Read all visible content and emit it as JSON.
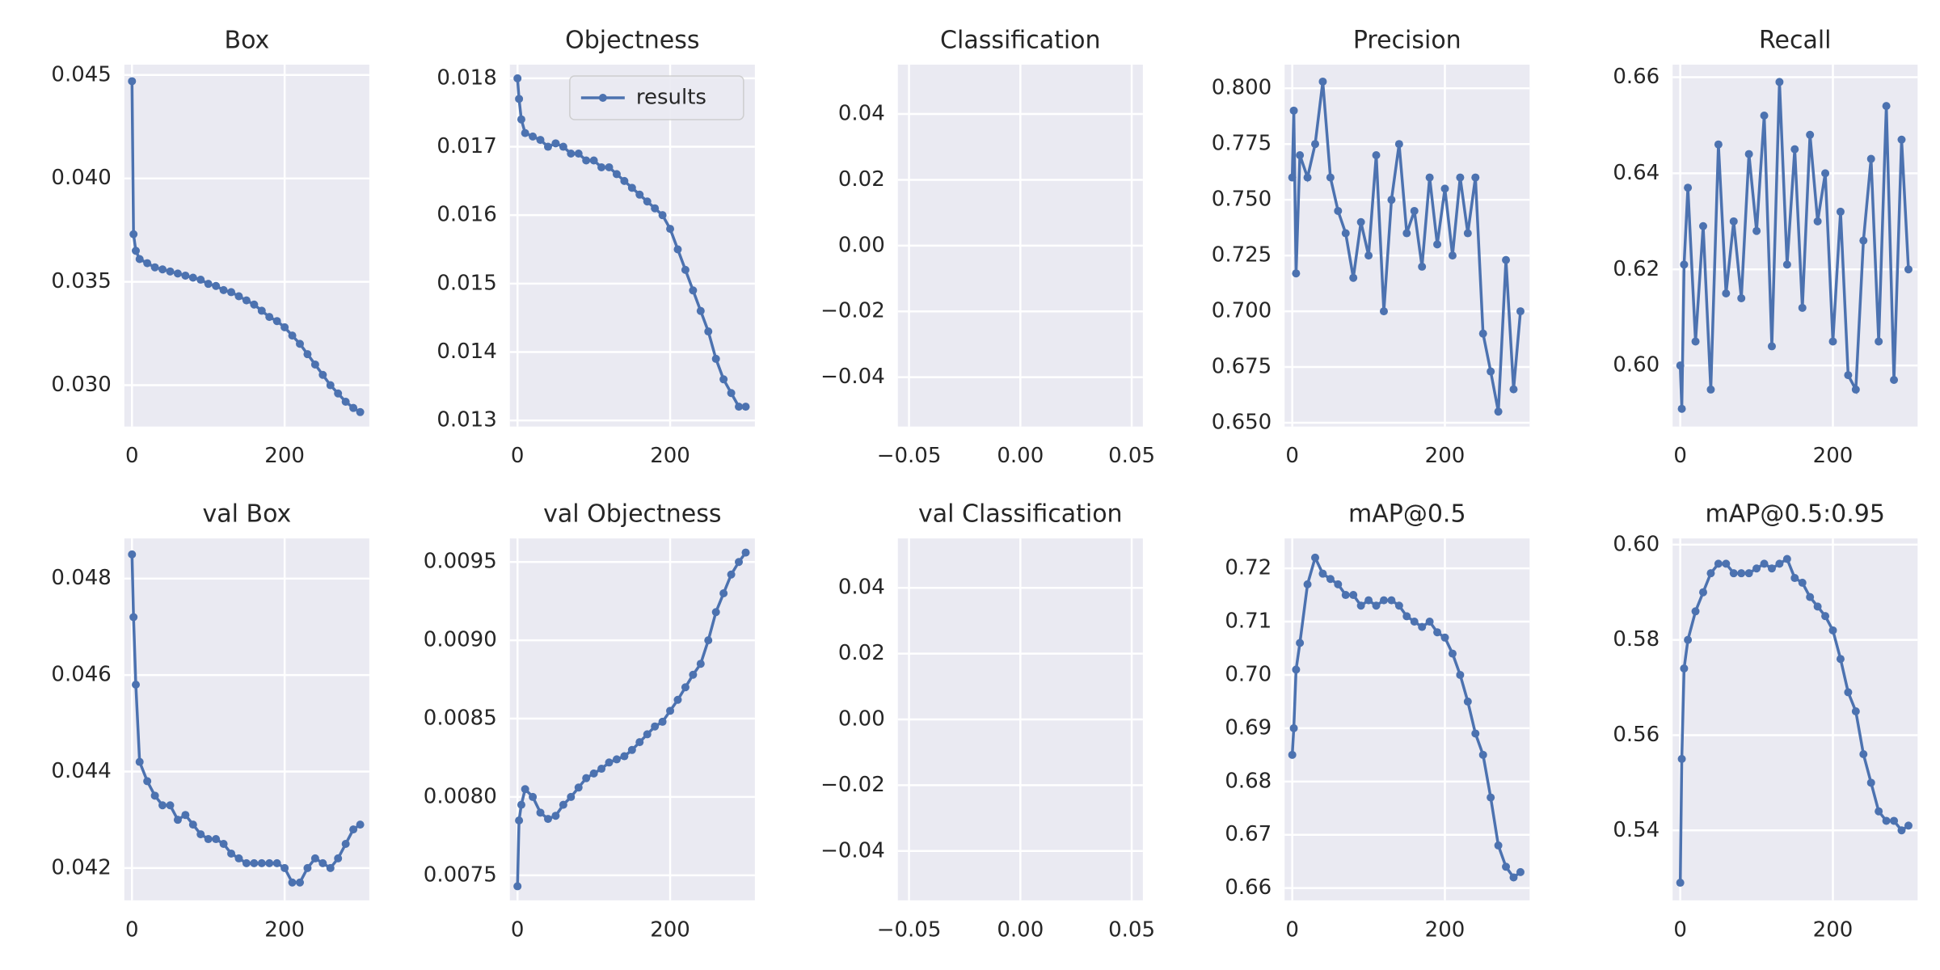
{
  "chart_data": [
    {
      "type": "line",
      "title": "Box",
      "x": [
        0,
        2,
        5,
        10,
        20,
        30,
        40,
        50,
        60,
        70,
        80,
        90,
        100,
        110,
        120,
        130,
        140,
        150,
        160,
        170,
        180,
        190,
        200,
        210,
        220,
        230,
        240,
        250,
        260,
        270,
        280,
        290,
        299
      ],
      "series": [
        {
          "color": "#4c72b0",
          "values": [
            0.0447,
            0.0373,
            0.0365,
            0.0361,
            0.0359,
            0.0357,
            0.0356,
            0.0355,
            0.0354,
            0.0353,
            0.0352,
            0.0351,
            0.0349,
            0.0348,
            0.0346,
            0.0345,
            0.0343,
            0.0341,
            0.0339,
            0.0336,
            0.0333,
            0.0331,
            0.0328,
            0.0324,
            0.032,
            0.0315,
            0.031,
            0.0305,
            0.03,
            0.0296,
            0.0292,
            0.0289,
            0.0287
          ]
        }
      ],
      "xlim": [
        -10,
        311
      ],
      "ylim": [
        0.028,
        0.0455
      ],
      "xticks": [
        0,
        200
      ],
      "yticks": [
        {
          "value": 0.03,
          "label": "0.030"
        },
        0.035,
        {
          "value": 0.04,
          "label": "0.040"
        },
        0.045
      ],
      "grid": true
    },
    {
      "type": "line",
      "title": "Objectness",
      "x": [
        0,
        2,
        5,
        10,
        20,
        30,
        40,
        50,
        60,
        70,
        80,
        90,
        100,
        110,
        120,
        130,
        140,
        150,
        160,
        170,
        180,
        190,
        200,
        210,
        220,
        230,
        240,
        250,
        260,
        270,
        280,
        290,
        299
      ],
      "series": [
        {
          "name": "results",
          "color": "#4c72b0",
          "values": [
            0.018,
            0.0177,
            0.0174,
            0.0172,
            0.01715,
            0.0171,
            0.017,
            0.01705,
            0.017,
            0.0169,
            0.0169,
            0.0168,
            0.0168,
            0.0167,
            0.0167,
            0.0166,
            0.0165,
            0.0164,
            0.0163,
            0.0162,
            0.0161,
            0.016,
            0.0158,
            0.0155,
            0.0152,
            0.0149,
            0.0146,
            0.0143,
            0.0139,
            0.0136,
            0.0134,
            0.0132,
            0.0132
          ]
        }
      ],
      "xlim": [
        -10,
        311
      ],
      "ylim": [
        0.01291,
        0.0182
      ],
      "xticks": [
        0,
        200
      ],
      "yticks": [
        0.013,
        0.014,
        0.015,
        0.016,
        0.017,
        0.018
      ],
      "grid": true,
      "legend": "upper right"
    },
    {
      "type": "line",
      "title": "Classification",
      "series": [],
      "xlim": [
        -0.055,
        0.055
      ],
      "ylim": [
        -0.055,
        0.055
      ],
      "xticks": [
        {
          "value": -0.05,
          "label": "−0.05"
        },
        {
          "value": 0,
          "label": "0.00"
        },
        0.05
      ],
      "yticks": [
        {
          "value": -0.04,
          "label": "−0.04"
        },
        {
          "value": -0.02,
          "label": "−0.02"
        },
        {
          "value": 0,
          "label": "0.00"
        },
        0.02,
        0.04
      ],
      "grid": true
    },
    {
      "type": "line",
      "title": "Precision",
      "x": [
        0,
        2,
        5,
        10,
        20,
        30,
        40,
        50,
        60,
        70,
        80,
        90,
        100,
        110,
        120,
        130,
        140,
        150,
        160,
        170,
        180,
        190,
        200,
        210,
        220,
        230,
        240,
        250,
        260,
        270,
        280,
        290,
        299
      ],
      "series": [
        {
          "color": "#4c72b0",
          "values": [
            0.76,
            0.79,
            0.717,
            0.77,
            0.76,
            0.775,
            0.803,
            0.76,
            0.745,
            0.735,
            0.715,
            0.74,
            0.725,
            0.77,
            0.7,
            0.75,
            0.775,
            0.735,
            0.745,
            0.72,
            0.76,
            0.73,
            0.755,
            0.725,
            0.76,
            0.735,
            0.76,
            0.69,
            0.673,
            0.655,
            0.723,
            0.665,
            0.7
          ]
        }
      ],
      "xlim": [
        -10,
        311
      ],
      "ylim": [
        0.6483,
        0.8106
      ],
      "xticks": [
        0,
        200
      ],
      "yticks": [
        {
          "value": 0.65,
          "label": "0.650"
        },
        0.675,
        {
          "value": 0.7,
          "label": "0.700"
        },
        0.725,
        {
          "value": 0.75,
          "label": "0.750"
        },
        0.775,
        {
          "value": 0.8,
          "label": "0.800"
        }
      ],
      "grid": true
    },
    {
      "type": "line",
      "title": "Recall",
      "x": [
        0,
        2,
        5,
        10,
        20,
        30,
        40,
        50,
        60,
        70,
        80,
        90,
        100,
        110,
        120,
        130,
        140,
        150,
        160,
        170,
        180,
        190,
        200,
        210,
        220,
        230,
        240,
        250,
        260,
        270,
        280,
        290,
        299
      ],
      "series": [
        {
          "color": "#4c72b0",
          "values": [
            0.6,
            0.591,
            0.621,
            0.637,
            0.605,
            0.629,
            0.595,
            0.646,
            0.615,
            0.63,
            0.614,
            0.644,
            0.628,
            0.652,
            0.604,
            0.659,
            0.621,
            0.645,
            0.612,
            0.648,
            0.63,
            0.64,
            0.605,
            0.632,
            0.598,
            0.595,
            0.626,
            0.643,
            0.605,
            0.654,
            0.597,
            0.647,
            0.62
          ]
        }
      ],
      "xlim": [
        -10,
        311
      ],
      "ylim": [
        0.5873,
        0.6626
      ],
      "xticks": [
        0,
        200
      ],
      "yticks": [
        {
          "value": 0.6,
          "label": "0.60"
        },
        0.62,
        0.64,
        0.66
      ],
      "grid": true
    },
    {
      "type": "line",
      "title": "val Box",
      "x": [
        0,
        2,
        5,
        10,
        20,
        30,
        40,
        50,
        60,
        70,
        80,
        90,
        100,
        110,
        120,
        130,
        140,
        150,
        160,
        170,
        180,
        190,
        200,
        210,
        220,
        230,
        240,
        250,
        260,
        270,
        280,
        290,
        299
      ],
      "series": [
        {
          "color": "#4c72b0",
          "values": [
            0.0485,
            0.0472,
            0.0458,
            0.0442,
            0.0438,
            0.0435,
            0.0433,
            0.0433,
            0.043,
            0.0431,
            0.0429,
            0.0427,
            0.0426,
            0.0426,
            0.0425,
            0.0423,
            0.0422,
            0.0421,
            0.0421,
            0.0421,
            0.0421,
            0.0421,
            0.042,
            0.0417,
            0.0417,
            0.042,
            0.0422,
            0.0421,
            0.042,
            0.0422,
            0.0425,
            0.0428,
            0.0429
          ]
        }
      ],
      "xlim": [
        -10,
        311
      ],
      "ylim": [
        0.04133,
        0.04883
      ],
      "xticks": [
        0,
        200
      ],
      "yticks": [
        0.042,
        0.044,
        0.046,
        0.048
      ],
      "grid": true
    },
    {
      "type": "line",
      "title": "val Objectness",
      "x": [
        0,
        2,
        5,
        10,
        20,
        30,
        40,
        50,
        60,
        70,
        80,
        90,
        100,
        110,
        120,
        130,
        140,
        150,
        160,
        170,
        180,
        190,
        200,
        210,
        220,
        230,
        240,
        250,
        260,
        270,
        280,
        290,
        299
      ],
      "series": [
        {
          "color": "#4c72b0",
          "values": [
            0.00743,
            0.00785,
            0.00795,
            0.00805,
            0.008,
            0.0079,
            0.00786,
            0.00788,
            0.00795,
            0.008,
            0.00806,
            0.00812,
            0.00815,
            0.00818,
            0.00822,
            0.00824,
            0.00826,
            0.0083,
            0.00835,
            0.0084,
            0.00845,
            0.00848,
            0.00855,
            0.00862,
            0.0087,
            0.00878,
            0.00885,
            0.009,
            0.00918,
            0.0093,
            0.00942,
            0.0095,
            0.00956
          ]
        }
      ],
      "xlim": [
        -10,
        311
      ],
      "ylim": [
        0.00734,
        0.00965
      ],
      "xticks": [
        0,
        200
      ],
      "yticks": [
        0.0075,
        {
          "value": 0.008,
          "label": "0.0080"
        },
        0.0085,
        {
          "value": 0.009,
          "label": "0.0090"
        },
        0.0095
      ],
      "grid": true
    },
    {
      "type": "line",
      "title": "val Classification",
      "series": [],
      "xlim": [
        -0.055,
        0.055
      ],
      "ylim": [
        -0.055,
        0.055
      ],
      "xticks": [
        {
          "value": -0.05,
          "label": "−0.05"
        },
        {
          "value": 0,
          "label": "0.00"
        },
        0.05
      ],
      "yticks": [
        {
          "value": -0.04,
          "label": "−0.04"
        },
        {
          "value": -0.02,
          "label": "−0.02"
        },
        {
          "value": 0,
          "label": "0.00"
        },
        0.02,
        0.04
      ],
      "grid": true
    },
    {
      "type": "line",
      "title": "mAP@0.5",
      "x": [
        0,
        2,
        5,
        10,
        20,
        30,
        40,
        50,
        60,
        70,
        80,
        90,
        100,
        110,
        120,
        130,
        140,
        150,
        160,
        170,
        180,
        190,
        200,
        210,
        220,
        230,
        240,
        250,
        260,
        270,
        280,
        290,
        299
      ],
      "series": [
        {
          "color": "#4c72b0",
          "values": [
            0.685,
            0.69,
            0.701,
            0.706,
            0.717,
            0.722,
            0.719,
            0.718,
            0.717,
            0.715,
            0.715,
            0.713,
            0.714,
            0.713,
            0.714,
            0.714,
            0.713,
            0.711,
            0.71,
            0.709,
            0.71,
            0.708,
            0.707,
            0.704,
            0.7,
            0.695,
            0.689,
            0.685,
            0.677,
            0.668,
            0.664,
            0.662,
            0.663
          ]
        }
      ],
      "xlim": [
        -10,
        311
      ],
      "ylim": [
        0.6577,
        0.7256
      ],
      "xticks": [
        0,
        200
      ],
      "yticks": [
        0.66,
        0.67,
        0.68,
        0.69,
        {
          "value": 0.7,
          "label": "0.70"
        },
        0.71,
        0.72
      ],
      "grid": true
    },
    {
      "type": "line",
      "title": "mAP@0.5:0.95",
      "x": [
        0,
        2,
        5,
        10,
        20,
        30,
        40,
        50,
        60,
        70,
        80,
        90,
        100,
        110,
        120,
        130,
        140,
        150,
        160,
        170,
        180,
        190,
        200,
        210,
        220,
        230,
        240,
        250,
        260,
        270,
        280,
        290,
        299
      ],
      "series": [
        {
          "color": "#4c72b0",
          "values": [
            0.529,
            0.555,
            0.574,
            0.58,
            0.586,
            0.59,
            0.594,
            0.596,
            0.596,
            0.594,
            0.594,
            0.594,
            0.595,
            0.596,
            0.595,
            0.596,
            0.597,
            0.593,
            0.592,
            0.589,
            0.587,
            0.585,
            0.582,
            0.576,
            0.569,
            0.565,
            0.556,
            0.55,
            0.544,
            0.542,
            0.542,
            0.54,
            0.541
          ]
        }
      ],
      "xlim": [
        -10,
        311
      ],
      "ylim": [
        0.5253,
        0.6013
      ],
      "xticks": [
        0,
        200
      ],
      "yticks": [
        0.54,
        0.56,
        0.58,
        {
          "value": 0.6,
          "label": "0.60"
        }
      ],
      "grid": true
    }
  ]
}
